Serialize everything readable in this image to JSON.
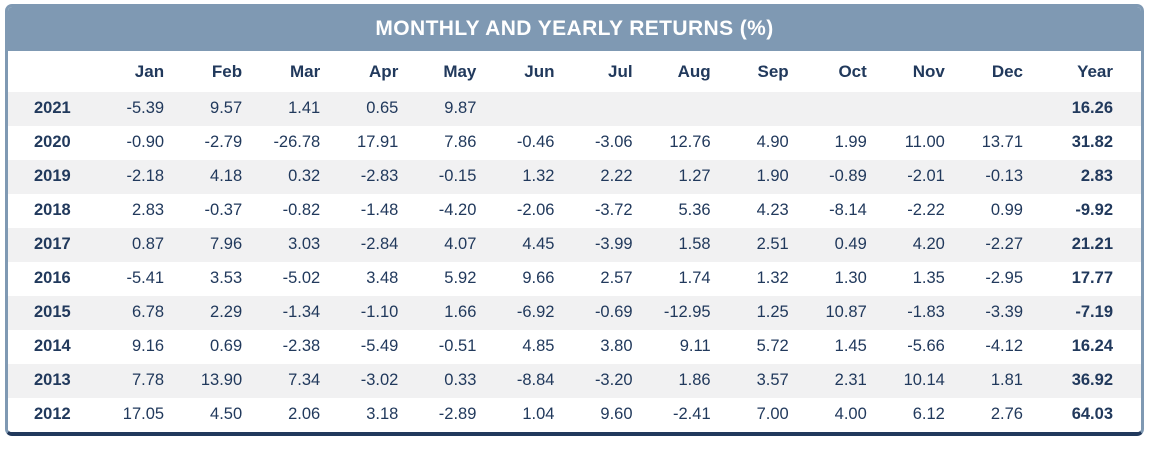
{
  "title": "MONTHLY AND YEARLY RETURNS (%)",
  "chart_data": {
    "type": "table",
    "title": "MONTHLY AND YEARLY RETURNS (%)",
    "columns": [
      "",
      "Jan",
      "Feb",
      "Mar",
      "Apr",
      "May",
      "Jun",
      "Jul",
      "Aug",
      "Sep",
      "Oct",
      "Nov",
      "Dec",
      "Year"
    ],
    "rows": [
      {
        "year": "2021",
        "monthly": [
          "-5.39",
          "9.57",
          "1.41",
          "0.65",
          "9.87",
          "",
          "",
          "",
          "",
          "",
          "",
          ""
        ],
        "yearly": "16.26"
      },
      {
        "year": "2020",
        "monthly": [
          "-0.90",
          "-2.79",
          "-26.78",
          "17.91",
          "7.86",
          "-0.46",
          "-3.06",
          "12.76",
          "4.90",
          "1.99",
          "11.00",
          "13.71"
        ],
        "yearly": "31.82"
      },
      {
        "year": "2019",
        "monthly": [
          "-2.18",
          "4.18",
          "0.32",
          "-2.83",
          "-0.15",
          "1.32",
          "2.22",
          "1.27",
          "1.90",
          "-0.89",
          "-2.01",
          "-0.13"
        ],
        "yearly": "2.83"
      },
      {
        "year": "2018",
        "monthly": [
          "2.83",
          "-0.37",
          "-0.82",
          "-1.48",
          "-4.20",
          "-2.06",
          "-3.72",
          "5.36",
          "4.23",
          "-8.14",
          "-2.22",
          "0.99"
        ],
        "yearly": "-9.92"
      },
      {
        "year": "2017",
        "monthly": [
          "0.87",
          "7.96",
          "3.03",
          "-2.84",
          "4.07",
          "4.45",
          "-3.99",
          "1.58",
          "2.51",
          "0.49",
          "4.20",
          "-2.27"
        ],
        "yearly": "21.21"
      },
      {
        "year": "2016",
        "monthly": [
          "-5.41",
          "3.53",
          "-5.02",
          "3.48",
          "5.92",
          "9.66",
          "2.57",
          "1.74",
          "1.32",
          "1.30",
          "1.35",
          "-2.95"
        ],
        "yearly": "17.77"
      },
      {
        "year": "2015",
        "monthly": [
          "6.78",
          "2.29",
          "-1.34",
          "-1.10",
          "1.66",
          "-6.92",
          "-0.69",
          "-12.95",
          "1.25",
          "10.87",
          "-1.83",
          "-3.39"
        ],
        "yearly": "-7.19"
      },
      {
        "year": "2014",
        "monthly": [
          "9.16",
          "0.69",
          "-2.38",
          "-5.49",
          "-0.51",
          "4.85",
          "3.80",
          "9.11",
          "5.72",
          "1.45",
          "-5.66",
          "-4.12"
        ],
        "yearly": "16.24"
      },
      {
        "year": "2013",
        "monthly": [
          "7.78",
          "13.90",
          "7.34",
          "-3.02",
          "0.33",
          "-8.84",
          "-3.20",
          "1.86",
          "3.57",
          "2.31",
          "10.14",
          "1.81"
        ],
        "yearly": "36.92"
      },
      {
        "year": "2012",
        "monthly": [
          "17.05",
          "4.50",
          "2.06",
          "3.18",
          "-2.89",
          "1.04",
          "9.60",
          "-2.41",
          "7.00",
          "4.00",
          "6.12",
          "2.76"
        ],
        "yearly": "64.03"
      }
    ]
  },
  "colors": {
    "header_bg": "#7f99b3",
    "text_navy": "#21395c",
    "row_alt_bg": "#f1f1f2",
    "border": "#7f99b3",
    "bottom_border": "#21395c",
    "title_text": "#ffffff"
  }
}
